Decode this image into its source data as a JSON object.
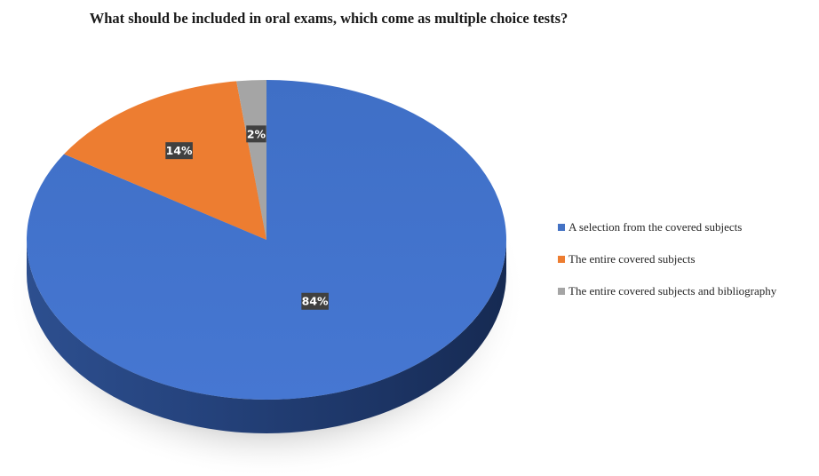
{
  "chart_data": {
    "type": "pie",
    "title": "What should be included in oral exams, which come as multiple choice tests?",
    "categories": [
      "A selection from the covered subjects",
      "The entire covered subjects",
      "The entire covered subjects and bibliography"
    ],
    "values": [
      84,
      14,
      2
    ],
    "labels": [
      "84%",
      "14%",
      "2%"
    ],
    "colors": [
      "#4472C4",
      "#ED7D31",
      "#A5A5A5"
    ],
    "legend_position": "right",
    "style": "3d"
  }
}
